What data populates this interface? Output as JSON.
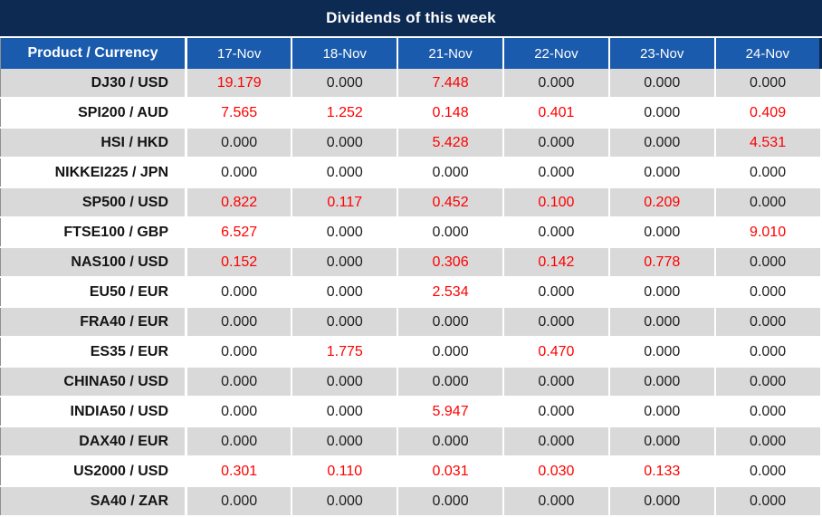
{
  "title_bar": {
    "title": "Dividends of this week",
    "background": "#0d2a52",
    "text_color": "#ffffff"
  },
  "chart_data": {
    "type": "table",
    "title": "Dividends of this week",
    "columns": [
      "Product / Currency",
      "17-Nov",
      "18-Nov",
      "21-Nov",
      "22-Nov",
      "23-Nov",
      "24-Nov"
    ],
    "value_format": "3 decimal places",
    "highlight_rule": "values greater than 0 are shown in red",
    "rows": [
      {
        "product": "DJ30 / USD",
        "values": [
          "19.179",
          "0.000",
          "7.448",
          "0.000",
          "0.000",
          "0.000"
        ]
      },
      {
        "product": "SPI200 / AUD",
        "values": [
          "7.565",
          "1.252",
          "0.148",
          "0.401",
          "0.000",
          "0.409"
        ]
      },
      {
        "product": "HSI / HKD",
        "values": [
          "0.000",
          "0.000",
          "5.428",
          "0.000",
          "0.000",
          "4.531"
        ]
      },
      {
        "product": "NIKKEI225 / JPN",
        "values": [
          "0.000",
          "0.000",
          "0.000",
          "0.000",
          "0.000",
          "0.000"
        ]
      },
      {
        "product": "SP500 / USD",
        "values": [
          "0.822",
          "0.117",
          "0.452",
          "0.100",
          "0.209",
          "0.000"
        ]
      },
      {
        "product": "FTSE100 / GBP",
        "values": [
          "6.527",
          "0.000",
          "0.000",
          "0.000",
          "0.000",
          "9.010"
        ]
      },
      {
        "product": "NAS100 / USD",
        "values": [
          "0.152",
          "0.000",
          "0.306",
          "0.142",
          "0.778",
          "0.000"
        ]
      },
      {
        "product": "EU50 / EUR",
        "values": [
          "0.000",
          "0.000",
          "2.534",
          "0.000",
          "0.000",
          "0.000"
        ]
      },
      {
        "product": "FRA40 / EUR",
        "values": [
          "0.000",
          "0.000",
          "0.000",
          "0.000",
          "0.000",
          "0.000"
        ]
      },
      {
        "product": "ES35 / EUR",
        "values": [
          "0.000",
          "1.775",
          "0.000",
          "0.470",
          "0.000",
          "0.000"
        ]
      },
      {
        "product": "CHINA50 / USD",
        "values": [
          "0.000",
          "0.000",
          "0.000",
          "0.000",
          "0.000",
          "0.000"
        ]
      },
      {
        "product": "INDIA50 / USD",
        "values": [
          "0.000",
          "0.000",
          "5.947",
          "0.000",
          "0.000",
          "0.000"
        ]
      },
      {
        "product": "DAX40 / EUR",
        "values": [
          "0.000",
          "0.000",
          "0.000",
          "0.000",
          "0.000",
          "0.000"
        ]
      },
      {
        "product": "US2000 / USD",
        "values": [
          "0.301",
          "0.110",
          "0.031",
          "0.030",
          "0.133",
          "0.000"
        ]
      },
      {
        "product": "SA40 / ZAR",
        "values": [
          "0.000",
          "0.000",
          "0.000",
          "0.000",
          "0.000",
          "0.000"
        ]
      }
    ],
    "colors": {
      "title_background": "#0d2a52",
      "header_background": "#1a5bad",
      "header_text": "#ffffff",
      "row_stripe_gray": "#d9d9d9",
      "row_stripe_white": "#ffffff",
      "zero_value_text": "#1f1f1f",
      "nonzero_value_text": "#ff0000",
      "grid_separator": "#ffffff"
    },
    "layout": {
      "striping": "first data row gray, alternating",
      "product_column_alignment": "right",
      "value_alignment": "center"
    }
  }
}
